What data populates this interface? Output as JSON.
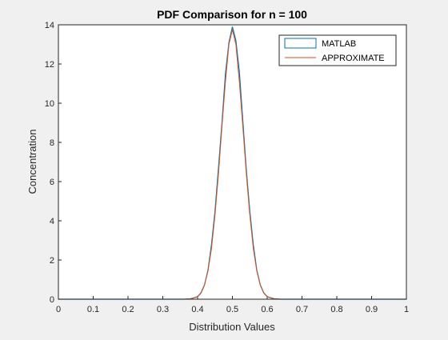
{
  "chart_data": {
    "type": "line",
    "title": "PDF Comparison for n = 100",
    "xlabel": "Distribution Values",
    "ylabel": "Concentration",
    "xlim": [
      0,
      1
    ],
    "ylim": [
      0,
      14
    ],
    "xticks": [
      0,
      0.1,
      0.2,
      0.3,
      0.4,
      0.5,
      0.6,
      0.7,
      0.8,
      0.9,
      1
    ],
    "xtick_labels": [
      "0",
      "0.1",
      "0.2",
      "0.3",
      "0.4",
      "0.5",
      "0.6",
      "0.7",
      "0.8",
      "0.9",
      "1"
    ],
    "yticks": [
      0,
      2,
      4,
      6,
      8,
      10,
      12,
      14
    ],
    "ytick_labels": [
      "0",
      "2",
      "4",
      "6",
      "8",
      "10",
      "12",
      "14"
    ],
    "grid": false,
    "legend_position": "top-right",
    "x": [
      0,
      0.36,
      0.38,
      0.4,
      0.41,
      0.42,
      0.43,
      0.44,
      0.45,
      0.46,
      0.47,
      0.48,
      0.49,
      0.5,
      0.51,
      0.52,
      0.53,
      0.54,
      0.55,
      0.56,
      0.57,
      0.58,
      0.59,
      0.6,
      0.62,
      0.64,
      1
    ],
    "series": [
      {
        "name": "MATLAB",
        "style": "histogram",
        "color": "#0072bd",
        "values": [
          0,
          0,
          0.02,
          0.13,
          0.33,
          0.74,
          1.5,
          2.8,
          4.5,
          6.7,
          9.0,
          11.5,
          13.1,
          13.9,
          13.2,
          11.6,
          9.1,
          6.6,
          4.5,
          2.8,
          1.5,
          0.74,
          0.33,
          0.13,
          0.02,
          0,
          0
        ]
      },
      {
        "name": "APPROXIMATE",
        "style": "line",
        "color": "#d95319",
        "values": [
          0,
          0.002,
          0.02,
          0.12,
          0.31,
          0.72,
          1.45,
          2.6,
          4.3,
          6.4,
          8.8,
          11.1,
          13.0,
          13.75,
          13.0,
          11.1,
          8.8,
          6.4,
          4.3,
          2.6,
          1.45,
          0.72,
          0.31,
          0.12,
          0.02,
          0.002,
          0
        ]
      }
    ]
  }
}
